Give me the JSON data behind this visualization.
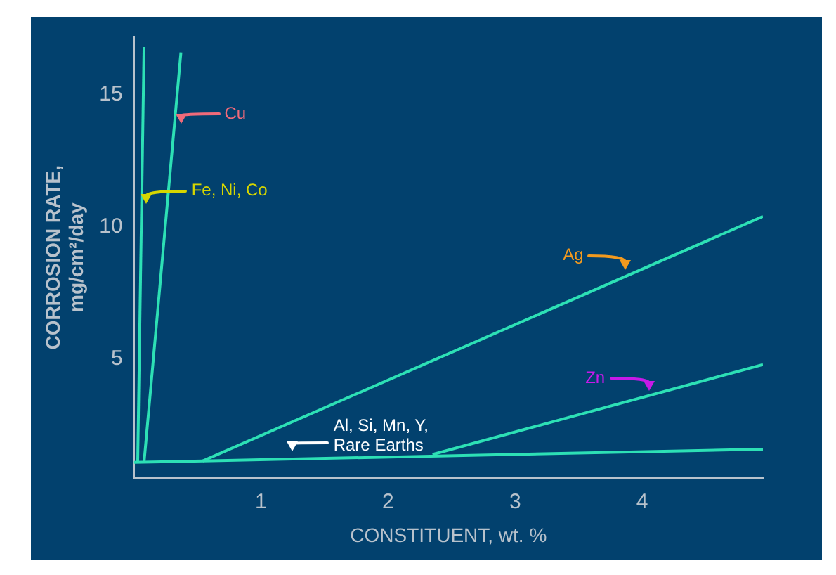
{
  "chart_data": {
    "type": "line",
    "xlabel": "CONSTITUENT, wt. %",
    "ylabel": "CORROSION RATE,\nmg/cm²/day",
    "xlim": [
      0,
      4.95
    ],
    "xticks": [
      1,
      2,
      3,
      4
    ],
    "ylim": [
      0.5,
      17.2
    ],
    "yticks": [
      5,
      10,
      15
    ],
    "legend": false,
    "marker": "none",
    "series": [
      {
        "color": "#2de0b5",
        "x": [
          0,
          4.95
        ],
        "values": [
          1.1,
          1.6
        ]
      },
      {
        "color": "#2de0b5",
        "x": [
          0.03,
          0.08
        ],
        "values": [
          1.1,
          16.8
        ]
      },
      {
        "color": "#2de0b5",
        "x": [
          0.08,
          0.37
        ],
        "values": [
          1.1,
          16.6
        ]
      },
      {
        "color": "#2de0b5",
        "x": [
          0.54,
          4.95
        ],
        "values": [
          1.15,
          10.4
        ]
      },
      {
        "color": "#2de0b5",
        "x": [
          2.35,
          4.95
        ],
        "values": [
          1.4,
          4.8
        ]
      }
    ],
    "annotations": [
      {
        "text": "Cu",
        "x": 0.37,
        "y": 13.9
      },
      {
        "text": "Fe, Ni, Co",
        "x": 0.1,
        "y": 10.9
      },
      {
        "text": "Ag",
        "x": 3.87,
        "y": 8.4
      },
      {
        "text": "Zn",
        "x": 4.05,
        "y": 3.8
      },
      {
        "text": "Al, Si, Mn, Y,\nRare Earths",
        "x": 1.25,
        "y": 1.5
      }
    ]
  }
}
